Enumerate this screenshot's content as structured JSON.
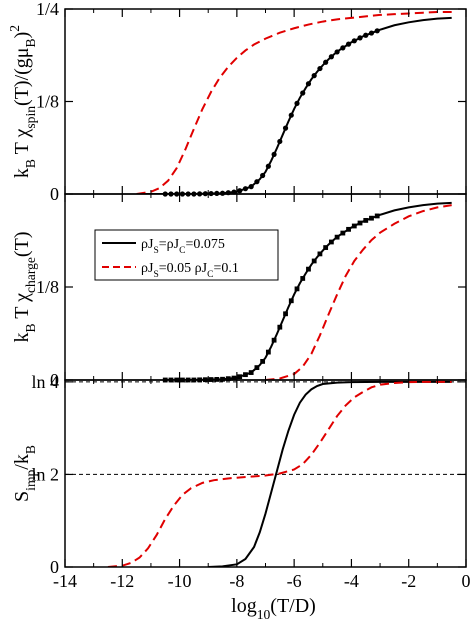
{
  "chart_data": [
    {
      "type": "line",
      "panel": "top",
      "ylabel_parts": [
        "k",
        "B",
        " T χ",
        "spin",
        "(T)/(gμ",
        "B",
        ")",
        "2"
      ],
      "xlim": [
        -14,
        0
      ],
      "ylim": [
        0,
        0.25
      ],
      "yticks": [
        {
          "v": 0,
          "label": "0"
        },
        {
          "v": 0.125,
          "label": "1/8"
        },
        {
          "v": 0.25,
          "label": "1/4"
        }
      ],
      "series": [
        {
          "name": "ρJS=ρJC=0.075",
          "style": "solid-markers",
          "color": "#000000",
          "x": [
            -11.5,
            -10.5,
            -9.5,
            -9.0,
            -8.5,
            -8.0,
            -7.5,
            -7.2,
            -7.0,
            -6.8,
            -6.6,
            -6.4,
            -6.2,
            -6.0,
            -5.8,
            -5.6,
            -5.4,
            -5.2,
            -5.0,
            -4.8,
            -4.6,
            -4.4,
            -4.2,
            -4.0,
            -3.8,
            -3.6,
            -3.4,
            -3.2,
            -3.0,
            -2.5,
            -2.0,
            -1.5,
            -1.0,
            -0.5
          ],
          "y": [
            0.0,
            0.0,
            0.0,
            0.0005,
            0.001,
            0.003,
            0.01,
            0.02,
            0.03,
            0.045,
            0.062,
            0.08,
            0.098,
            0.115,
            0.13,
            0.143,
            0.155,
            0.165,
            0.174,
            0.182,
            0.189,
            0.195,
            0.2,
            0.205,
            0.209,
            0.213,
            0.216,
            0.219,
            0.222,
            0.228,
            0.232,
            0.235,
            0.237,
            0.238
          ],
          "marker_range": [
            -10.5,
            -3.0
          ]
        },
        {
          "name": "ρJS=0.05 ρJC=0.1",
          "style": "dashed",
          "color": "#e00000",
          "x": [
            -11.5,
            -11.0,
            -10.7,
            -10.4,
            -10.1,
            -9.8,
            -9.5,
            -9.2,
            -8.9,
            -8.6,
            -8.3,
            -8.0,
            -7.7,
            -7.4,
            -7.0,
            -6.5,
            -6.0,
            -5.5,
            -5.0,
            -4.5,
            -4.0,
            -3.5,
            -3.0,
            -2.5,
            -2.0,
            -1.5,
            -1.0,
            -0.5
          ],
          "y": [
            0.0,
            0.003,
            0.008,
            0.018,
            0.035,
            0.06,
            0.088,
            0.115,
            0.138,
            0.157,
            0.172,
            0.184,
            0.194,
            0.202,
            0.21,
            0.218,
            0.224,
            0.229,
            0.233,
            0.236,
            0.238,
            0.24,
            0.242,
            0.243,
            0.244,
            0.245,
            0.246,
            0.246
          ]
        }
      ]
    },
    {
      "type": "line",
      "panel": "middle",
      "ylabel_parts": [
        "k",
        "B",
        " T χ",
        "charge",
        "(T)"
      ],
      "xlim": [
        -14,
        0
      ],
      "ylim": [
        0,
        0.25
      ],
      "yticks": [
        {
          "v": 0,
          "label": "0"
        },
        {
          "v": 0.125,
          "label": "1/8"
        }
      ],
      "legend": {
        "position": "top-left",
        "entries": [
          {
            "color": "#000000",
            "style": "solid",
            "parts": [
              "ρJ",
              "S",
              "=ρJ",
              "C",
              "=0.075"
            ]
          },
          {
            "color": "#e00000",
            "style": "dashed",
            "parts": [
              "ρJ",
              "S",
              "=0.05  ρJ",
              "C",
              "=0.1"
            ]
          }
        ]
      },
      "series": [
        {
          "name": "ρJS=ρJC=0.075",
          "style": "solid-markers",
          "color": "#000000",
          "x": [
            -10.5,
            -9.5,
            -9.0,
            -8.5,
            -8.0,
            -7.5,
            -7.2,
            -7.0,
            -6.8,
            -6.6,
            -6.4,
            -6.2,
            -6.0,
            -5.8,
            -5.6,
            -5.4,
            -5.2,
            -5.0,
            -4.8,
            -4.6,
            -4.4,
            -4.2,
            -4.0,
            -3.8,
            -3.6,
            -3.4,
            -3.2,
            -3.0,
            -2.5,
            -2.0,
            -1.5,
            -1.0,
            -0.5
          ],
          "y": [
            0.0,
            0.0,
            0.0005,
            0.001,
            0.003,
            0.01,
            0.02,
            0.03,
            0.045,
            0.062,
            0.08,
            0.098,
            0.115,
            0.13,
            0.143,
            0.155,
            0.165,
            0.174,
            0.182,
            0.189,
            0.195,
            0.2,
            0.205,
            0.209,
            0.213,
            0.216,
            0.219,
            0.222,
            0.228,
            0.232,
            0.235,
            0.237,
            0.238
          ],
          "marker_range": [
            -10.5,
            -3.0
          ]
        },
        {
          "name": "ρJS=0.05 ρJC=0.1",
          "style": "dashed",
          "color": "#e00000",
          "x": [
            -7.0,
            -6.5,
            -6.0,
            -5.7,
            -5.4,
            -5.1,
            -4.8,
            -4.5,
            -4.2,
            -3.9,
            -3.6,
            -3.3,
            -3.0,
            -2.5,
            -2.0,
            -1.5,
            -1.0,
            -0.5
          ],
          "y": [
            0.0,
            0.002,
            0.008,
            0.018,
            0.035,
            0.06,
            0.088,
            0.115,
            0.14,
            0.16,
            0.175,
            0.188,
            0.198,
            0.21,
            0.22,
            0.227,
            0.232,
            0.235
          ]
        }
      ]
    },
    {
      "type": "line",
      "panel": "bottom",
      "ylabel_parts": [
        "S",
        "imp",
        "/k",
        "B"
      ],
      "xlabel_parts": [
        "log",
        "10",
        "(T/D)"
      ],
      "xlim": [
        -14,
        0
      ],
      "ylim": [
        0,
        1.4
      ],
      "yticks": [
        {
          "v": 0,
          "label": "0"
        },
        {
          "v": 0.693,
          "label": "ln 2"
        },
        {
          "v": 1.386,
          "label": "ln 4"
        }
      ],
      "xticks": [
        {
          "v": -14,
          "label": "-14"
        },
        {
          "v": -12,
          "label": "-12"
        },
        {
          "v": -10,
          "label": "-10"
        },
        {
          "v": -8,
          "label": "-8"
        },
        {
          "v": -6,
          "label": "-6"
        },
        {
          "v": -4,
          "label": "-4"
        },
        {
          "v": -2,
          "label": "-2"
        },
        {
          "v": 0,
          "label": "0"
        }
      ],
      "reference_lines": [
        0.693,
        1.386
      ],
      "series": [
        {
          "name": "ρJS=ρJC=0.075",
          "style": "solid",
          "color": "#000000",
          "x": [
            -9.0,
            -8.5,
            -8.0,
            -7.7,
            -7.4,
            -7.2,
            -7.0,
            -6.8,
            -6.6,
            -6.4,
            -6.2,
            -6.0,
            -5.8,
            -5.6,
            -5.4,
            -5.2,
            -5.0,
            -4.5,
            -4.0,
            -3.0,
            -2.0,
            -0.5
          ],
          "y": [
            0.0,
            0.005,
            0.02,
            0.06,
            0.15,
            0.26,
            0.4,
            0.56,
            0.72,
            0.88,
            1.02,
            1.14,
            1.23,
            1.29,
            1.33,
            1.355,
            1.37,
            1.38,
            1.384,
            1.386,
            1.386,
            1.386
          ]
        },
        {
          "name": "ρJS=0.05 ρJC=0.1",
          "style": "dashed",
          "color": "#e00000",
          "x": [
            -12.5,
            -12.0,
            -11.7,
            -11.4,
            -11.1,
            -10.8,
            -10.5,
            -10.2,
            -9.9,
            -9.6,
            -9.2,
            -8.8,
            -8.2,
            -7.6,
            -7.0,
            -6.5,
            -6.0,
            -5.7,
            -5.4,
            -5.1,
            -4.8,
            -4.5,
            -4.2,
            -3.9,
            -3.6,
            -3.3,
            -3.0,
            -2.5,
            -2.0,
            -1.5,
            -0.5
          ],
          "y": [
            0.0,
            0.01,
            0.03,
            0.07,
            0.14,
            0.24,
            0.36,
            0.46,
            0.54,
            0.59,
            0.63,
            0.65,
            0.665,
            0.675,
            0.685,
            0.7,
            0.73,
            0.77,
            0.84,
            0.93,
            1.03,
            1.13,
            1.21,
            1.27,
            1.31,
            1.345,
            1.365,
            1.378,
            1.384,
            1.386,
            1.386
          ]
        }
      ]
    }
  ]
}
